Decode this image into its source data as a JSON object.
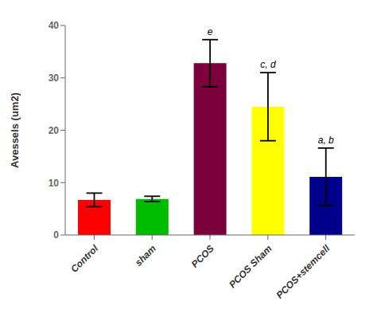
{
  "chart_data": {
    "type": "bar",
    "categories": [
      "Control",
      "sham",
      "PCOS",
      "PCOS Sham",
      "PCOS+stemcell"
    ],
    "values": [
      6.7,
      6.9,
      32.8,
      24.5,
      11.1
    ],
    "errors": [
      1.3,
      0.5,
      4.5,
      6.5,
      5.5
    ],
    "colors": [
      "#ff0000",
      "#00bb00",
      "#7b003c",
      "#ffff00",
      "#00008b"
    ],
    "annotations": [
      null,
      null,
      "e",
      "c, d",
      "a, b"
    ],
    "ylabel": "Avessels (um2)",
    "ylim": [
      0,
      40
    ],
    "yticks": [
      0,
      10,
      20,
      30,
      40
    ],
    "grid": false
  }
}
